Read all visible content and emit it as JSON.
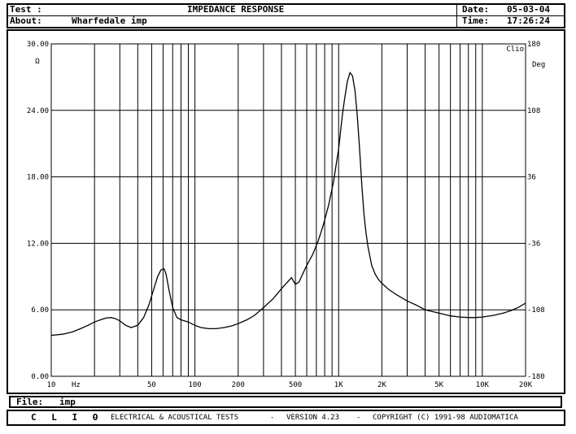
{
  "header": {
    "test_label": "Test :",
    "title": "IMPEDANCE RESPONSE",
    "date_label": "Date:",
    "date_value": "05-03-04",
    "about_label": "About:",
    "about_value": "Wharfedale imp",
    "time_label": "Time:",
    "time_value": "17:26:24"
  },
  "file": {
    "label": "File:",
    "value": "imp"
  },
  "footer": {
    "brand": "C L I O",
    "sep1": "-",
    "desc": "ELECTRICAL & ACOUSTICAL TESTS",
    "sep2": "-",
    "version": "VERSION 4.23",
    "sep3": "-",
    "copyright": "COPYRIGHT (C) 1991-98 AUDIOMATICA"
  },
  "chart_data": {
    "type": "line",
    "title": "IMPEDANCE RESPONSE",
    "xlabel": "Hz",
    "ylabel": "Ω",
    "y2label": "Deg",
    "watermark": "Clio",
    "xscale": "log",
    "xlim": [
      10,
      20000
    ],
    "ylim": [
      0,
      30
    ],
    "y2lim": [
      -180,
      180
    ],
    "grid": true,
    "x_tick_labels": [
      {
        "value": 10,
        "label": "10"
      },
      {
        "value": 50,
        "label": "50"
      },
      {
        "value": 100,
        "label": "100"
      },
      {
        "value": 200,
        "label": "200"
      },
      {
        "value": 500,
        "label": "500"
      },
      {
        "value": 1000,
        "label": "1K"
      },
      {
        "value": 2000,
        "label": "2K"
      },
      {
        "value": 5000,
        "label": "5K"
      },
      {
        "value": 10000,
        "label": "10K"
      },
      {
        "value": 20000,
        "label": "20K"
      }
    ],
    "y_tick_labels": [
      {
        "value": 0,
        "label": "0.00"
      },
      {
        "value": 6,
        "label": "6.00"
      },
      {
        "value": 12,
        "label": "12.00"
      },
      {
        "value": 18,
        "label": "18.00"
      },
      {
        "value": 24,
        "label": "24.00"
      },
      {
        "value": 30,
        "label": "30.00"
      }
    ],
    "y2_tick_labels": [
      {
        "value": -180,
        "label": "-180"
      },
      {
        "value": -108,
        "label": "-108"
      },
      {
        "value": -36,
        "label": "-36"
      },
      {
        "value": 36,
        "label": "36"
      },
      {
        "value": 108,
        "label": "108"
      },
      {
        "value": 180,
        "label": "180"
      }
    ],
    "series": [
      {
        "x": [
          10,
          12,
          14,
          16,
          18,
          20,
          22,
          24,
          26,
          28,
          30,
          33,
          36,
          40,
          44,
          48,
          52,
          55,
          58,
          61,
          63,
          66,
          70,
          75,
          80,
          90,
          100,
          110,
          125,
          140,
          160,
          180,
          200,
          230,
          260,
          300,
          350,
          400,
          440,
          470,
          500,
          530,
          560,
          600,
          660,
          720,
          780,
          850,
          920,
          1000,
          1060,
          1100,
          1150,
          1200,
          1250,
          1300,
          1350,
          1400,
          1450,
          1500,
          1550,
          1600,
          1700,
          1800,
          1900,
          2000,
          2200,
          2500,
          3000,
          3500,
          4000,
          5000,
          6000,
          7000,
          8000,
          9000,
          10000,
          12000,
          14000,
          16000,
          18000,
          20000
        ],
        "values": [
          3.7,
          3.8,
          4.0,
          4.3,
          4.6,
          4.9,
          5.1,
          5.25,
          5.3,
          5.2,
          5.0,
          4.6,
          4.4,
          4.6,
          5.3,
          6.5,
          8.0,
          9.0,
          9.6,
          9.7,
          9.2,
          7.8,
          6.2,
          5.3,
          5.1,
          4.9,
          4.6,
          4.4,
          4.3,
          4.3,
          4.4,
          4.55,
          4.75,
          5.1,
          5.5,
          6.2,
          7.0,
          7.9,
          8.5,
          8.9,
          8.3,
          8.5,
          9.2,
          10.0,
          11.0,
          12.2,
          13.6,
          15.4,
          17.5,
          20.5,
          23.5,
          25.0,
          26.6,
          27.4,
          27.1,
          25.8,
          23.5,
          20.5,
          17.3,
          14.7,
          13.0,
          11.7,
          10.0,
          9.2,
          8.7,
          8.4,
          7.9,
          7.4,
          6.8,
          6.4,
          6.0,
          5.7,
          5.45,
          5.35,
          5.3,
          5.3,
          5.35,
          5.5,
          5.7,
          5.95,
          6.25,
          6.6
        ]
      }
    ]
  }
}
